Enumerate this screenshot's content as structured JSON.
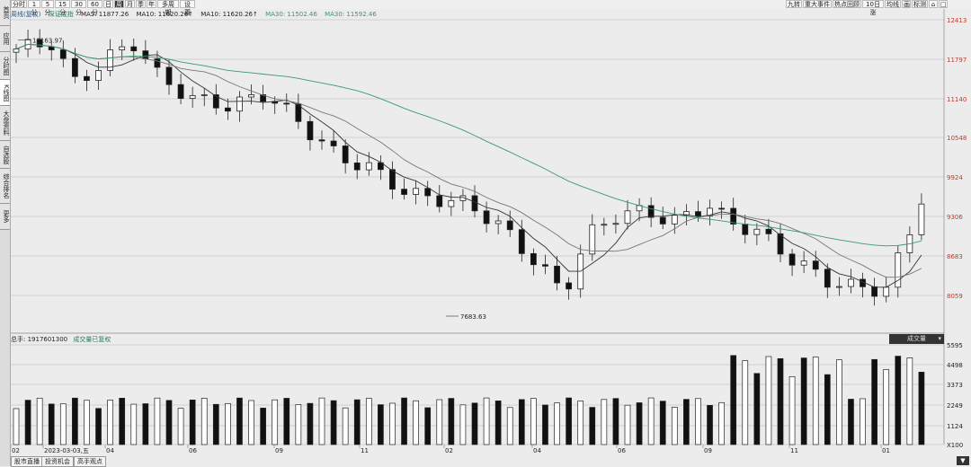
{
  "sidebar": {
    "items": [
      {
        "label": "首页"
      },
      {
        "label": "应用"
      },
      {
        "label": "分时图"
      },
      {
        "label": "K线图"
      },
      {
        "label": "大盘资料"
      },
      {
        "label": "自选股"
      },
      {
        "label": "综合排名"
      },
      {
        "label": "更多"
      }
    ]
  },
  "toolbar": {
    "periods": [
      "分时",
      "1分",
      "5分",
      "15分",
      "30分",
      "60分",
      "日",
      "周",
      "月",
      "季",
      "年",
      "多周期",
      "设置"
    ],
    "active_period": "周",
    "right_tools": [
      "九转",
      "重大事件",
      "热点回顾",
      "10日涨",
      "均线",
      "画",
      "标测",
      "⌂",
      "□"
    ]
  },
  "info": {
    "index_name": "周线(复权)",
    "index_code": "深证成指",
    "ma5": "MA5: 11877.26",
    "ma10": "MA10: 11620.26↑",
    "ma20": "MA10: 11620.26↑",
    "ma30": "MA30: 11502.46",
    "ma60": "MA30: 11592.46"
  },
  "price_axis": [
    "12413",
    "11797",
    "11140",
    "10548",
    "9924",
    "9306",
    "8683",
    "8059"
  ],
  "annotations": {
    "high": "12163.97",
    "low": "7683.63"
  },
  "x_axis": [
    "02",
    "2023-03-03,五",
    "04",
    "06",
    "09",
    "11",
    "02",
    "04",
    "06",
    "09",
    "11",
    "01"
  ],
  "volume": {
    "label": "总手: 1917601300",
    "sub_label": "成交量已复权",
    "selector": "成交量",
    "axis": [
      "5595",
      "4498",
      "3373",
      "2249",
      "1124",
      "X100"
    ]
  },
  "bottom_tabs": [
    "股市直播",
    "投资机会",
    "高手观点"
  ],
  "corner_icon": "expand-icon",
  "colors": {
    "up": "#222222",
    "down": "#111111",
    "ma_long": "#3a9a6a",
    "grid": "#c9c9c9",
    "bg": "#ececec"
  }
}
